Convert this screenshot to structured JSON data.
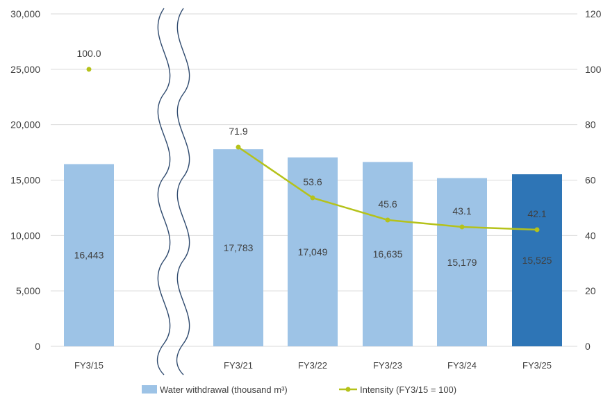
{
  "chart_data": {
    "type": "bar",
    "categories": [
      "FY3/15",
      "FY3/21",
      "FY3/22",
      "FY3/23",
      "FY3/24",
      "FY3/25"
    ],
    "series": [
      {
        "name": "Water withdrawal (thousand m³)",
        "type": "bar",
        "axis": "left",
        "values": [
          16443,
          17783,
          17049,
          16635,
          15179,
          15525
        ],
        "labels": [
          "16,443",
          "17,783",
          "17,049",
          "16,635",
          "15,179",
          "15,525"
        ],
        "highlight_index": 5
      },
      {
        "name": "Intensity (FY3/15 = 100)",
        "type": "line",
        "axis": "right",
        "values": [
          100.0,
          71.9,
          53.6,
          45.6,
          43.1,
          42.1
        ],
        "labels": [
          "100.0",
          "71.9",
          "53.6",
          "45.6",
          "43.1",
          "42.1"
        ]
      }
    ],
    "y_left": {
      "min": 0,
      "max": 30000,
      "ticks": [
        "0",
        "5,000",
        "10,000",
        "15,000",
        "20,000",
        "25,000",
        "30,000"
      ]
    },
    "y_right": {
      "min": 0,
      "max": 120,
      "ticks": [
        "0",
        "20",
        "40",
        "60",
        "80",
        "100",
        "120"
      ]
    },
    "axis_break": "between FY3/15 and FY3/21",
    "grid": true,
    "legend_position": "bottom",
    "legend": [
      "Water withdrawal (thousand m³)",
      "Intensity (FY3/15 = 100)"
    ]
  },
  "colors": {
    "bar": "#9dc3e6",
    "bar_highlight": "#2e75b6",
    "line": "#b5c21a",
    "grid": "#d9d9d9",
    "text": "#404040",
    "break": "#2f4a6e"
  }
}
